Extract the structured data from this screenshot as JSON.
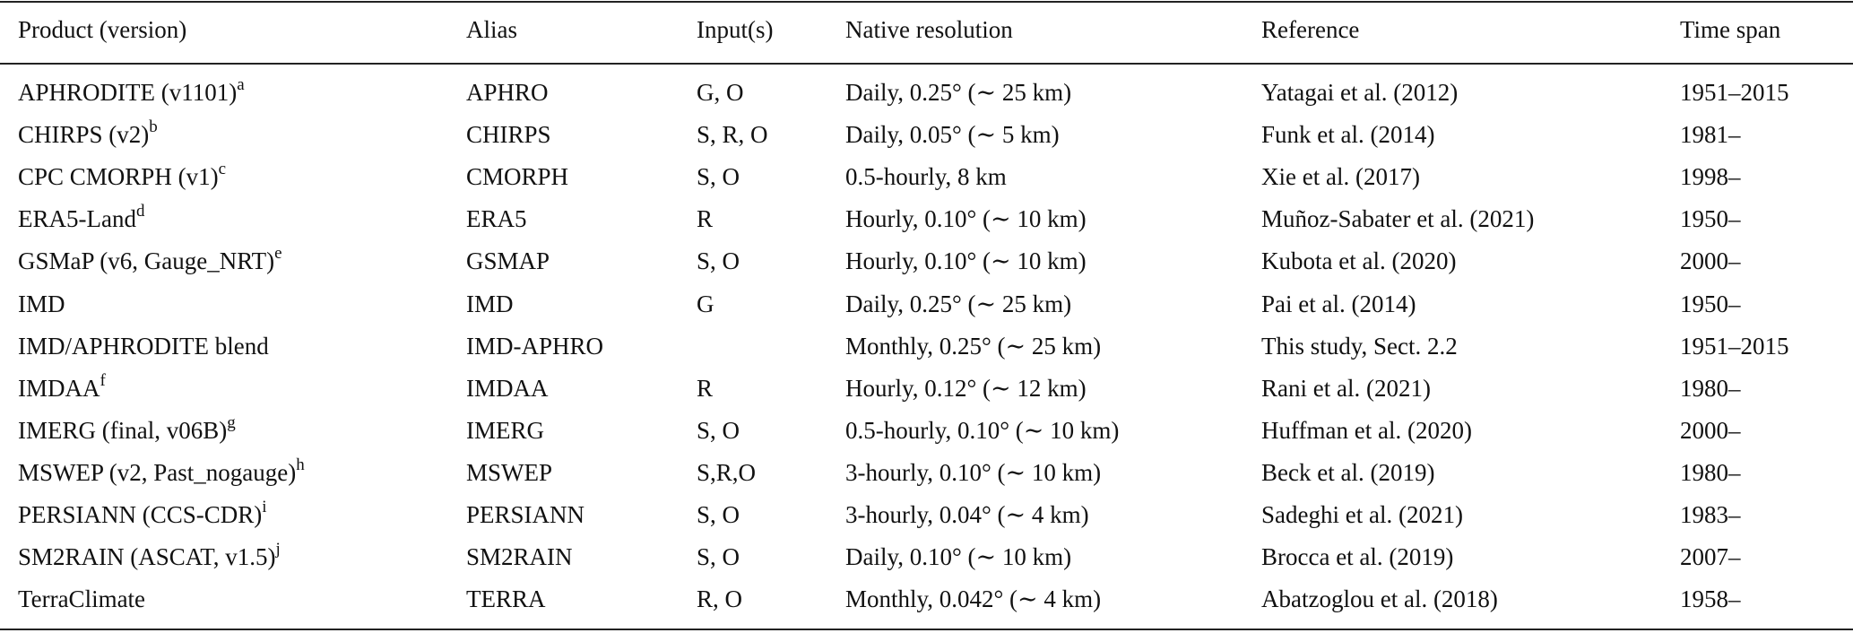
{
  "table": {
    "headers": [
      "Product (version)",
      "Alias",
      "Input(s)",
      "Native resolution",
      "Reference",
      "Time span"
    ],
    "rows": [
      {
        "product": "APHRODITE (v1101)",
        "note": "a",
        "alias": "APHRO",
        "inputs": "G, O",
        "resolution": "Daily, 0.25° (∼ 25 km)",
        "reference": "Yatagai et al. (2012)",
        "span": "1951–2015"
      },
      {
        "product": "CHIRPS (v2)",
        "note": "b",
        "alias": "CHIRPS",
        "inputs": "S, R, O",
        "resolution": "Daily, 0.05° (∼ 5 km)",
        "reference": "Funk et al. (2014)",
        "span": "1981–"
      },
      {
        "product": "CPC CMORPH (v1)",
        "note": "c",
        "alias": "CMORPH",
        "inputs": "S, O",
        "resolution": "0.5-hourly, 8 km",
        "reference": "Xie et al. (2017)",
        "span": "1998–"
      },
      {
        "product": "ERA5-Land",
        "note": "d",
        "alias": "ERA5",
        "inputs": "R",
        "resolution": "Hourly, 0.10° (∼ 10 km)",
        "reference": "Muñoz-Sabater et al. (2021)",
        "span": "1950–"
      },
      {
        "product": "GSMaP (v6, Gauge_NRT)",
        "note": "e",
        "alias": "GSMAP",
        "inputs": "S, O",
        "resolution": "Hourly, 0.10° (∼ 10 km)",
        "reference": "Kubota et al. (2020)",
        "span": "2000–"
      },
      {
        "product": "IMD",
        "note": "",
        "alias": "IMD",
        "inputs": "G",
        "resolution": "Daily, 0.25° (∼ 25 km)",
        "reference": "Pai et al. (2014)",
        "span": "1950–"
      },
      {
        "product": "IMD/APHRODITE blend",
        "note": "",
        "alias": "IMD-APHRO",
        "inputs": "",
        "resolution": "Monthly, 0.25° (∼ 25 km)",
        "reference": "This study, Sect. 2.2",
        "span": "1951–2015"
      },
      {
        "product": "IMDAA",
        "note": "f",
        "alias": "IMDAA",
        "inputs": "R",
        "resolution": "Hourly, 0.12° (∼ 12 km)",
        "reference": "Rani et al. (2021)",
        "span": "1980–"
      },
      {
        "product": "IMERG (final, v06B)",
        "note": "g",
        "alias": "IMERG",
        "inputs": "S, O",
        "resolution": "0.5-hourly, 0.10° (∼ 10 km)",
        "reference": "Huffman et al. (2020)",
        "span": "2000–"
      },
      {
        "product": "MSWEP (v2, Past_nogauge)",
        "note": "h",
        "alias": "MSWEP",
        "inputs": "S,R,O",
        "resolution": "3-hourly, 0.10° (∼ 10 km)",
        "reference": "Beck et al. (2019)",
        "span": "1980–"
      },
      {
        "product": "PERSIANN (CCS-CDR)",
        "note": "i",
        "alias": "PERSIANN",
        "inputs": "S, O",
        "resolution": "3-hourly, 0.04° (∼ 4 km)",
        "reference": "Sadeghi et al. (2021)",
        "span": "1983–"
      },
      {
        "product": "SM2RAIN (ASCAT, v1.5)",
        "note": "j",
        "alias": "SM2RAIN",
        "inputs": "S, O",
        "resolution": "Daily, 0.10° (∼ 10 km)",
        "reference": "Brocca et al. (2019)",
        "span": "2007–"
      },
      {
        "product": "TerraClimate",
        "note": "",
        "alias": "TERRA",
        "inputs": "R, O",
        "resolution": "Monthly, 0.042° (∼ 4 km)",
        "reference": "Abatzoglou et al. (2018)",
        "span": "1958–"
      }
    ]
  }
}
